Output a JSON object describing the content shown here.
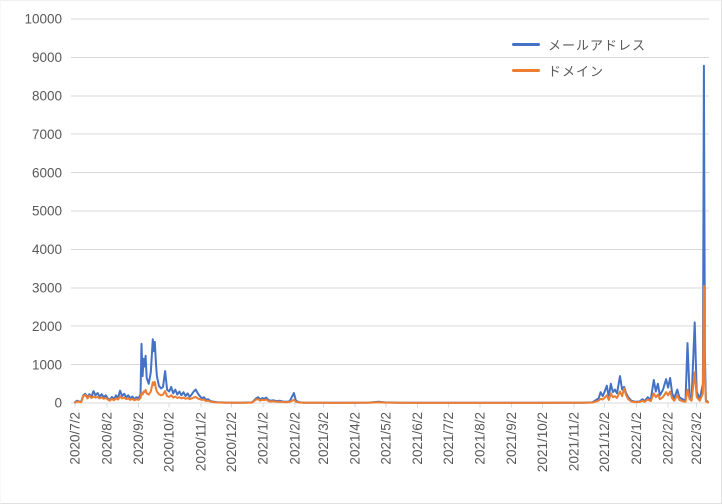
{
  "colors": {
    "background": "#ffffff",
    "gridline": "#d9d9d9",
    "axis_line": "#d9d9d9",
    "tick_mark": "#d9d9d9",
    "axis_text": "#595959",
    "series_email": "#4472c4",
    "series_domain": "#ed7d31"
  },
  "legend": {
    "position": "top-right",
    "items": [
      {
        "label": "メールアドレス",
        "color": "#4472c4"
      },
      {
        "label": "ドメイン",
        "color": "#ed7d31"
      }
    ]
  },
  "chart_data": {
    "type": "line",
    "title": "",
    "xlabel": "",
    "ylabel": "",
    "grid": true,
    "legend_position": "top-right",
    "x_axis": {
      "range": [
        "2020/6/28",
        "2022/3/14"
      ],
      "tick_labels": [
        "2020/7/2",
        "2020/8/2",
        "2020/9/2",
        "2020/10/2",
        "2020/11/2",
        "2020/12/2",
        "2021/1/2",
        "2021/2/2",
        "2021/3/2",
        "2021/4/2",
        "2021/5/2",
        "2021/6/2",
        "2021/7/2",
        "2021/8/2",
        "2021/9/2",
        "2021/10/2",
        "2021/11/2",
        "2021/12/2",
        "2022/1/2",
        "2022/2/2",
        "2022/3/2"
      ]
    },
    "y_axis": {
      "min": 0,
      "max": 10000,
      "step": 1000,
      "tick_labels": [
        "0",
        "1000",
        "2000",
        "3000",
        "4000",
        "5000",
        "6000",
        "7000",
        "8000",
        "9000",
        "10000"
      ]
    },
    "series": [
      {
        "id": "email",
        "name": "メールアドレス",
        "color": "#4472c4",
        "peak_value": 8780,
        "peak_date": "2022/3/9"
      },
      {
        "id": "domain",
        "name": "ドメイン",
        "color": "#ed7d31",
        "peak_value": 3050,
        "peak_date": "2022/3/9"
      }
    ],
    "points_format": [
      "date",
      "email_count",
      "domain_count"
    ],
    "points": [
      [
        "2020/7/2",
        20,
        10
      ],
      [
        "2020/7/4",
        60,
        40
      ],
      [
        "2020/7/6",
        40,
        30
      ],
      [
        "2020/7/8",
        30,
        20
      ],
      [
        "2020/7/10",
        200,
        180
      ],
      [
        "2020/7/12",
        240,
        210
      ],
      [
        "2020/7/14",
        150,
        120
      ],
      [
        "2020/7/16",
        230,
        190
      ],
      [
        "2020/7/18",
        160,
        130
      ],
      [
        "2020/7/20",
        310,
        170
      ],
      [
        "2020/7/22",
        200,
        140
      ],
      [
        "2020/7/24",
        260,
        160
      ],
      [
        "2020/7/26",
        170,
        120
      ],
      [
        "2020/7/28",
        230,
        150
      ],
      [
        "2020/7/30",
        150,
        110
      ],
      [
        "2020/8/1",
        200,
        130
      ],
      [
        "2020/8/3",
        120,
        90
      ],
      [
        "2020/8/5",
        80,
        60
      ],
      [
        "2020/8/7",
        160,
        110
      ],
      [
        "2020/8/9",
        100,
        70
      ],
      [
        "2020/8/11",
        200,
        120
      ],
      [
        "2020/8/13",
        130,
        90
      ],
      [
        "2020/8/15",
        320,
        170
      ],
      [
        "2020/8/17",
        180,
        120
      ],
      [
        "2020/8/19",
        240,
        140
      ],
      [
        "2020/8/21",
        150,
        100
      ],
      [
        "2020/8/23",
        200,
        120
      ],
      [
        "2020/8/25",
        120,
        80
      ],
      [
        "2020/8/27",
        170,
        110
      ],
      [
        "2020/8/29",
        100,
        70
      ],
      [
        "2020/8/31",
        150,
        100
      ],
      [
        "2020/9/2",
        120,
        80
      ],
      [
        "2020/9/4",
        220,
        130
      ],
      [
        "2020/9/5",
        1540,
        260
      ],
      [
        "2020/9/6",
        700,
        220
      ],
      [
        "2020/9/7",
        1150,
        300
      ],
      [
        "2020/9/8",
        950,
        280
      ],
      [
        "2020/9/9",
        1230,
        340
      ],
      [
        "2020/9/10",
        650,
        250
      ],
      [
        "2020/9/12",
        500,
        220
      ],
      [
        "2020/9/14",
        800,
        300
      ],
      [
        "2020/9/16",
        1660,
        540
      ],
      [
        "2020/9/17",
        1350,
        470
      ],
      [
        "2020/9/18",
        1590,
        550
      ],
      [
        "2020/9/19",
        1050,
        380
      ],
      [
        "2020/9/20",
        700,
        300
      ],
      [
        "2020/9/22",
        450,
        230
      ],
      [
        "2020/9/24",
        380,
        200
      ],
      [
        "2020/9/26",
        420,
        220
      ],
      [
        "2020/9/28",
        830,
        310
      ],
      [
        "2020/9/30",
        350,
        180
      ],
      [
        "2020/10/2",
        300,
        160
      ],
      [
        "2020/10/4",
        420,
        200
      ],
      [
        "2020/10/6",
        250,
        140
      ],
      [
        "2020/10/8",
        350,
        170
      ],
      [
        "2020/10/10",
        220,
        130
      ],
      [
        "2020/10/12",
        300,
        150
      ],
      [
        "2020/10/14",
        200,
        120
      ],
      [
        "2020/10/16",
        280,
        140
      ],
      [
        "2020/10/18",
        180,
        110
      ],
      [
        "2020/10/20",
        250,
        130
      ],
      [
        "2020/10/22",
        160,
        100
      ],
      [
        "2020/10/24",
        220,
        120
      ],
      [
        "2020/10/26",
        300,
        140
      ],
      [
        "2020/10/28",
        350,
        160
      ],
      [
        "2020/10/30",
        250,
        120
      ],
      [
        "2020/11/1",
        180,
        100
      ],
      [
        "2020/11/3",
        120,
        80
      ],
      [
        "2020/11/5",
        150,
        90
      ],
      [
        "2020/11/7",
        80,
        50
      ],
      [
        "2020/11/9",
        100,
        60
      ],
      [
        "2020/11/11",
        60,
        40
      ],
      [
        "2020/11/13",
        40,
        25
      ],
      [
        "2020/11/15",
        30,
        20
      ],
      [
        "2020/11/18",
        20,
        12
      ],
      [
        "2020/11/22",
        15,
        10
      ],
      [
        "2020/11/26",
        10,
        8
      ],
      [
        "2020/12/1",
        10,
        6
      ],
      [
        "2020/12/8",
        8,
        5
      ],
      [
        "2020/12/15",
        10,
        6
      ],
      [
        "2020/12/22",
        15,
        10
      ],
      [
        "2020/12/26",
        120,
        90
      ],
      [
        "2020/12/28",
        150,
        100
      ],
      [
        "2020/12/30",
        90,
        60
      ],
      [
        "2021/1/1",
        130,
        85
      ],
      [
        "2021/1/3",
        110,
        70
      ],
      [
        "2021/1/5",
        140,
        90
      ],
      [
        "2021/1/7",
        80,
        50
      ],
      [
        "2021/1/9",
        60,
        40
      ],
      [
        "2021/1/12",
        70,
        45
      ],
      [
        "2021/1/15",
        50,
        30
      ],
      [
        "2021/1/18",
        60,
        35
      ],
      [
        "2021/1/21",
        40,
        25
      ],
      [
        "2021/1/25",
        30,
        20
      ],
      [
        "2021/1/28",
        50,
        30
      ],
      [
        "2021/2/1",
        260,
        80
      ],
      [
        "2021/2/3",
        60,
        30
      ],
      [
        "2021/2/6",
        20,
        12
      ],
      [
        "2021/2/10",
        10,
        6
      ],
      [
        "2021/2/15",
        8,
        5
      ],
      [
        "2021/2/20",
        6,
        4
      ],
      [
        "2021/3/1",
        5,
        4
      ],
      [
        "2021/3/15",
        4,
        3
      ],
      [
        "2021/4/1",
        5,
        4
      ],
      [
        "2021/4/15",
        10,
        8
      ],
      [
        "2021/4/25",
        30,
        20
      ],
      [
        "2021/5/1",
        15,
        10
      ],
      [
        "2021/5/15",
        5,
        4
      ],
      [
        "2021/6/1",
        4,
        3
      ],
      [
        "2021/6/15",
        4,
        3
      ],
      [
        "2021/7/1",
        4,
        3
      ],
      [
        "2021/7/15",
        4,
        3
      ],
      [
        "2021/8/1",
        4,
        3
      ],
      [
        "2021/8/15",
        4,
        3
      ],
      [
        "2021/9/1",
        4,
        3
      ],
      [
        "2021/9/15",
        4,
        3
      ],
      [
        "2021/10/1",
        4,
        3
      ],
      [
        "2021/10/15",
        5,
        4
      ],
      [
        "2021/11/1",
        6,
        4
      ],
      [
        "2021/11/10",
        8,
        5
      ],
      [
        "2021/11/20",
        15,
        10
      ],
      [
        "2021/11/26",
        120,
        60
      ],
      [
        "2021/11/28",
        280,
        110
      ],
      [
        "2021/11/30",
        180,
        90
      ],
      [
        "2021/12/2",
        300,
        140
      ],
      [
        "2021/12/4",
        450,
        200
      ],
      [
        "2021/12/6",
        150,
        80
      ],
      [
        "2021/12/8",
        500,
        250
      ],
      [
        "2021/12/10",
        280,
        150
      ],
      [
        "2021/12/12",
        350,
        180
      ],
      [
        "2021/12/14",
        250,
        130
      ],
      [
        "2021/12/17",
        700,
        300
      ],
      [
        "2021/12/19",
        350,
        180
      ],
      [
        "2021/12/21",
        420,
        380
      ],
      [
        "2021/12/23",
        250,
        200
      ],
      [
        "2021/12/25",
        150,
        100
      ],
      [
        "2021/12/28",
        60,
        40
      ],
      [
        "2022/1/1",
        30,
        20
      ],
      [
        "2022/1/5",
        40,
        25
      ],
      [
        "2022/1/8",
        100,
        60
      ],
      [
        "2022/1/10",
        50,
        30
      ],
      [
        "2022/1/13",
        150,
        90
      ],
      [
        "2022/1/16",
        80,
        50
      ],
      [
        "2022/1/19",
        600,
        250
      ],
      [
        "2022/1/21",
        300,
        150
      ],
      [
        "2022/1/23",
        500,
        220
      ],
      [
        "2022/1/25",
        200,
        100
      ],
      [
        "2022/1/28",
        350,
        160
      ],
      [
        "2022/1/31",
        620,
        280
      ],
      [
        "2022/2/2",
        400,
        200
      ],
      [
        "2022/2/4",
        650,
        300
      ],
      [
        "2022/2/6",
        250,
        120
      ],
      [
        "2022/2/8",
        120,
        60
      ],
      [
        "2022/2/11",
        350,
        200
      ],
      [
        "2022/2/13",
        150,
        80
      ],
      [
        "2022/2/16",
        100,
        50
      ],
      [
        "2022/2/19",
        60,
        30
      ],
      [
        "2022/2/21",
        1560,
        350
      ],
      [
        "2022/2/23",
        200,
        100
      ],
      [
        "2022/2/25",
        120,
        60
      ],
      [
        "2022/2/28",
        2100,
        800
      ],
      [
        "2022/3/2",
        300,
        150
      ],
      [
        "2022/3/5",
        100,
        60
      ],
      [
        "2022/3/8",
        500,
        250
      ],
      [
        "2022/3/9",
        8780,
        3050
      ],
      [
        "2022/3/10",
        1200,
        600
      ],
      [
        "2022/3/11",
        80,
        40
      ],
      [
        "2022/3/13",
        20,
        12
      ]
    ]
  }
}
